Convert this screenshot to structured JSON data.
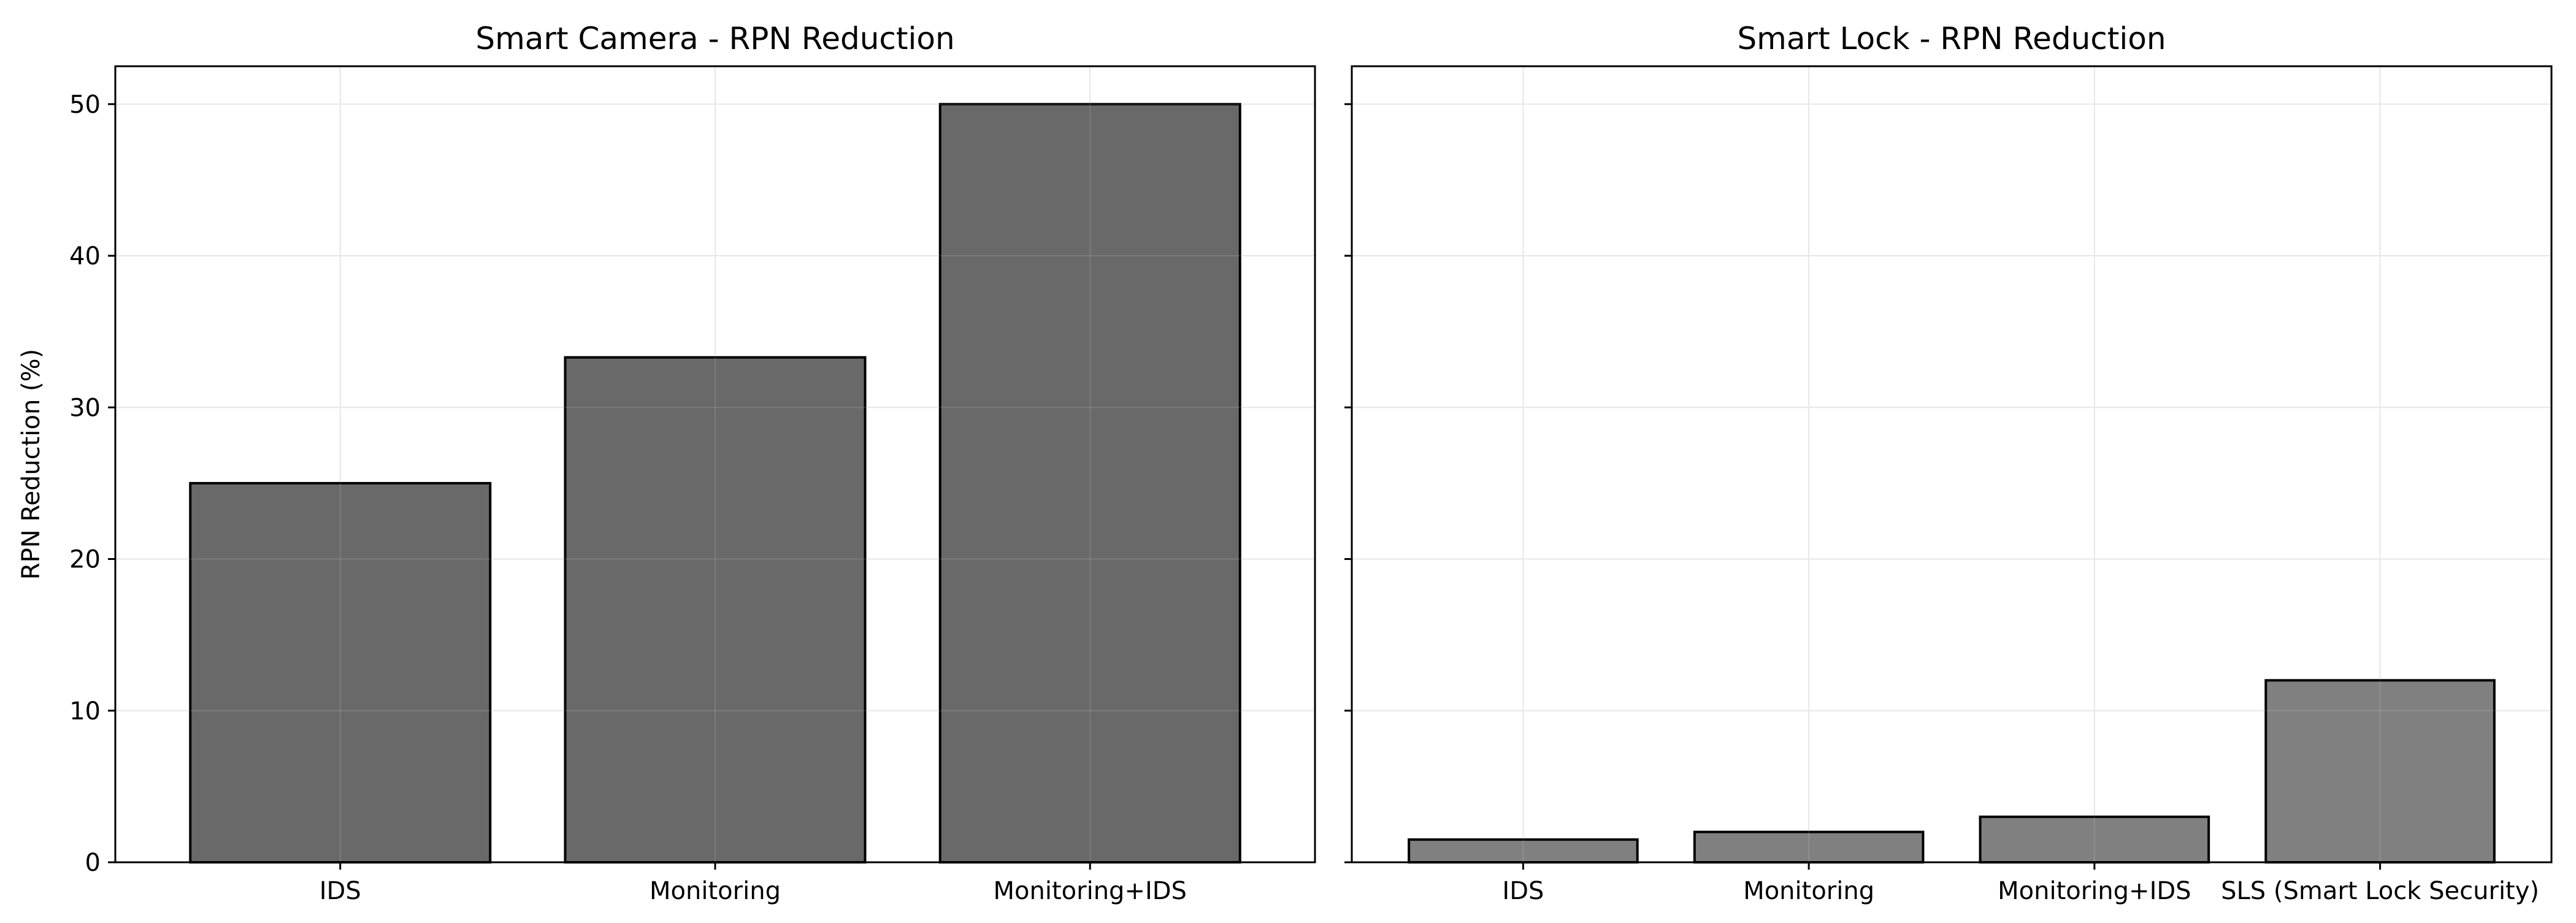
{
  "chart_data": [
    {
      "type": "bar",
      "title": "Smart Camera - RPN Reduction",
      "ylabel": "RPN Reduction (%)",
      "xlabel": "",
      "categories": [
        "IDS",
        "Monitoring",
        "Monitoring+IDS"
      ],
      "values": [
        25.0,
        33.3,
        50.0
      ],
      "ylim": [
        0,
        52.5
      ],
      "yticks": [
        0,
        10,
        20,
        30,
        40,
        50
      ],
      "grid": true,
      "bar_color": "#696969",
      "edge_color": "#000000"
    },
    {
      "type": "bar",
      "title": "Smart Lock - RPN Reduction",
      "ylabel": "",
      "xlabel": "",
      "categories": [
        "IDS",
        "Monitoring",
        "Monitoring+IDS",
        "SLS (Smart Lock Security)"
      ],
      "values": [
        1.5,
        2.0,
        3.0,
        12.0
      ],
      "ylim": [
        0,
        52.5
      ],
      "yticks": [
        0,
        10,
        20,
        30,
        40,
        50
      ],
      "grid": true,
      "bar_color": "#808080",
      "edge_color": "#000000"
    }
  ]
}
